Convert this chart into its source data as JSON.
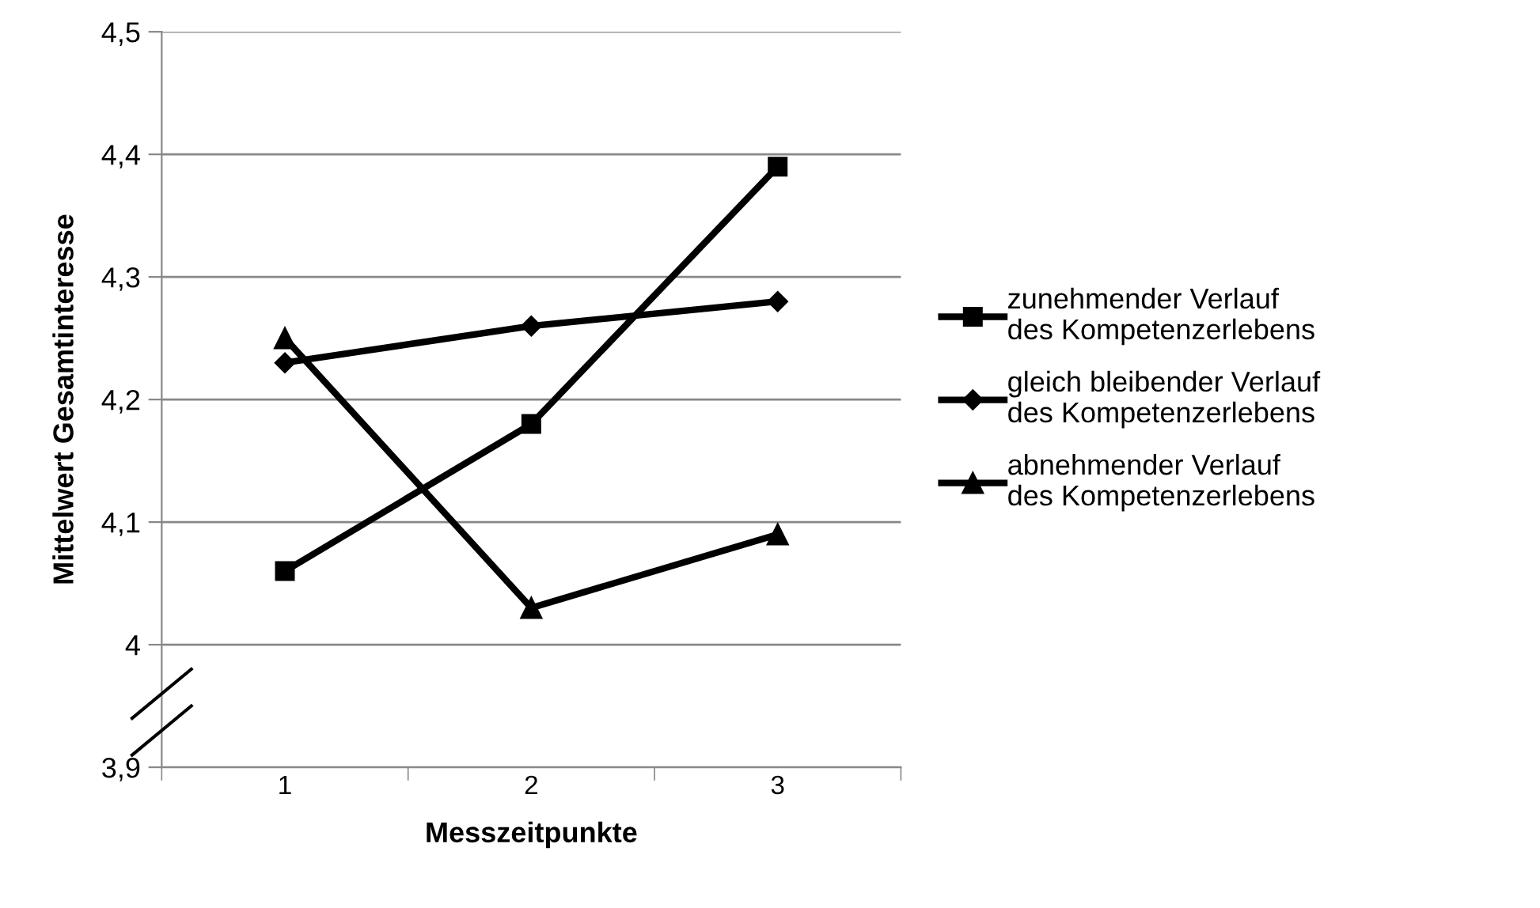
{
  "chart_data": {
    "type": "line",
    "xlabel": "Messzeitpunkte",
    "ylabel": "Mittelwert Gesamtinteresse",
    "categories": [
      "1",
      "2",
      "3"
    ],
    "series": [
      {
        "name": "zunehmender Verlauf\ndes Kompetenzerlebens",
        "color": "#000000",
        "marker": "square",
        "values": [
          4.06,
          4.18,
          4.39
        ]
      },
      {
        "name": "gleich bleibender Verlauf\ndes Kompetenzerlebens",
        "color": "#000000",
        "marker": "diamond",
        "values": [
          4.23,
          4.26,
          4.28
        ]
      },
      {
        "name": "abnehmender Verlauf\ndes Kompetenzerlebens",
        "color": "#000000",
        "marker": "triangle",
        "values": [
          4.25,
          4.03,
          4.09
        ]
      }
    ],
    "ylim": [
      3.9,
      4.5
    ],
    "yticks": [
      {
        "value": 3.9,
        "label": "3,9"
      },
      4,
      {
        "value": 4.1,
        "label": "4,1"
      },
      {
        "value": 4.2,
        "label": "4,2"
      },
      {
        "value": 4.3,
        "label": "4,3"
      },
      {
        "value": 4.4,
        "label": "4,4"
      },
      {
        "value": 4.5,
        "label": "4,5"
      }
    ],
    "grid": "y",
    "legend": "right",
    "line_style": "solid"
  }
}
